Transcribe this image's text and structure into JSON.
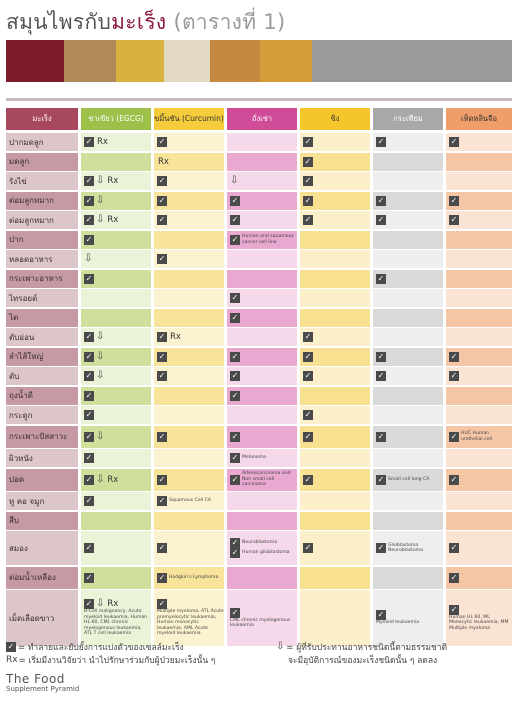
{
  "title": {
    "main": "สมุนไพรกับ",
    "highlight": "มะเร็ง",
    "sub": "(ตารางที่ 1)"
  },
  "banner_colors": [
    "#7e1d2a",
    "#b08a5a",
    "#d8b23e",
    "#e2d9c4",
    "#c58a3f",
    "#d59d3a",
    "#9a9a9a"
  ],
  "headers": [
    "มะเร็ง",
    "ชาเขียว (EGCG)",
    "ขมิ้นชัน (Curcumin)",
    "ถั่งเช่า",
    "ขิง",
    "กระเทียม",
    "เห็ดหลินจือ"
  ],
  "rows": [
    {
      "label": "ปากมดลูก",
      "h": "n",
      "cells": [
        [
          "c",
          "rx"
        ],
        [
          "c"
        ],
        [],
        [
          "c"
        ],
        [
          "c"
        ],
        [
          "c"
        ]
      ]
    },
    {
      "label": "มดลูก",
      "h": "n",
      "cells": [
        [],
        [
          "rx"
        ],
        [],
        [
          "c"
        ],
        [],
        []
      ]
    },
    {
      "label": "รังไข่",
      "h": "n",
      "cells": [
        [
          "c",
          "a",
          "rx"
        ],
        [
          "c"
        ],
        [
          "a"
        ],
        [
          "c"
        ],
        [],
        []
      ]
    },
    {
      "label": "ต่อมลูกหมาก",
      "h": "n",
      "cells": [
        [
          "c",
          "a"
        ],
        [
          "c"
        ],
        [
          "c"
        ],
        [
          "c"
        ],
        [
          "c"
        ],
        [
          "c"
        ]
      ]
    },
    {
      "label": "ต่อมลูกหมาก",
      "h": "n",
      "cells": [
        [
          "c",
          "a",
          "rx"
        ],
        [
          "c"
        ],
        [
          "c"
        ],
        [
          "c"
        ],
        [
          "c"
        ],
        [
          "c"
        ]
      ]
    },
    {
      "label": "ปาก",
      "h": "n",
      "cells": [
        [
          "c"
        ],
        [],
        [
          "c",
          "note:Human oral squamous cancer cell line"
        ],
        [],
        [],
        []
      ]
    },
    {
      "label": "หลอดอาหาร",
      "h": "n",
      "cells": [
        [
          "a"
        ],
        [
          "c"
        ],
        [],
        [],
        [],
        []
      ]
    },
    {
      "label": "กระเพาะอาหาร",
      "h": "n",
      "cells": [
        [
          "c"
        ],
        [],
        [],
        [],
        [
          "c"
        ],
        []
      ]
    },
    {
      "label": "ไทรอยด์",
      "h": "n",
      "cells": [
        [],
        [],
        [
          "c"
        ],
        [],
        [],
        []
      ]
    },
    {
      "label": "ไต",
      "h": "n",
      "cells": [
        [],
        [],
        [
          "c"
        ],
        [],
        [],
        []
      ]
    },
    {
      "label": "ตับอ่อน",
      "h": "n",
      "cells": [
        [
          "c",
          "a"
        ],
        [
          "c",
          "rx"
        ],
        [],
        [
          "c"
        ],
        [],
        []
      ]
    },
    {
      "label": "ลำไส้ใหญ่",
      "h": "n",
      "cells": [
        [
          "c",
          "a"
        ],
        [
          "c"
        ],
        [
          "c"
        ],
        [
          "c"
        ],
        [
          "c"
        ],
        [
          "c"
        ]
      ]
    },
    {
      "label": "ตับ",
      "h": "n",
      "cells": [
        [
          "c",
          "a"
        ],
        [
          "c"
        ],
        [
          "c"
        ],
        [
          "c"
        ],
        [
          "c"
        ],
        [
          "c"
        ]
      ]
    },
    {
      "label": "ถุงน้ำดี",
      "h": "n",
      "cells": [
        [
          "c"
        ],
        [],
        [
          "c"
        ],
        [],
        [],
        []
      ]
    },
    {
      "label": "กระดูก",
      "h": "n",
      "cells": [
        [
          "c"
        ],
        [],
        [],
        [
          "c"
        ],
        [],
        []
      ]
    },
    {
      "label": "กระเพาะปัสสาวะ",
      "h": "t",
      "cells": [
        [
          "c",
          "a"
        ],
        [
          "c"
        ],
        [
          "c"
        ],
        [
          "c"
        ],
        [
          "c"
        ],
        [
          "c",
          "note:HUC Human urothelial cell"
        ]
      ]
    },
    {
      "label": "ผิวหนัง",
      "h": "n",
      "cells": [
        [
          "c"
        ],
        [],
        [
          "c",
          "note:Melanoma"
        ],
        [],
        [],
        []
      ]
    },
    {
      "label": "ปอด",
      "h": "t",
      "cells": [
        [
          "c",
          "a",
          "rx"
        ],
        [
          "c"
        ],
        [
          "c",
          "note:Adenocarcinoma and Non small cell carcinoma"
        ],
        [
          "c"
        ],
        [
          "c",
          "note:Small cell lung CA"
        ],
        [
          "c"
        ]
      ]
    },
    {
      "label": "หู คอ จมูก",
      "h": "n",
      "cells": [
        [
          "c"
        ],
        [
          "c",
          "note:Squamous Cell CA"
        ],
        [],
        [],
        [],
        []
      ]
    },
    {
      "label": "สืบ",
      "h": "n",
      "cells": [
        [],
        [],
        [],
        [],
        [],
        []
      ]
    },
    {
      "label": "สมอง",
      "h": "x",
      "cells": [
        [
          "c"
        ],
        [
          "c"
        ],
        [
          "c",
          "note:Neuroblastoma",
          "c2:Human glioblastoma"
        ],
        [
          "c"
        ],
        [
          "c",
          "note:Glioblastoma Neuroblastoma"
        ],
        [
          "c"
        ]
      ]
    },
    {
      "label": "ต่อมน้ำเหลือง",
      "h": "t",
      "cells": [
        [
          "c"
        ],
        [
          "c",
          "note:Hodgkin's Lymphoma"
        ],
        [],
        [],
        [],
        [
          "c"
        ]
      ]
    },
    {
      "label": "เม็ดเลือดขาว",
      "h": "xx",
      "cells": [
        [
          "c",
          "a",
          "rx",
          "note:B-Cell malignancy, Acute myeloid leukaemia, Human HL-60, CML chronic myelogenous leukaemia, ATL T cell leukaemia"
        ],
        [
          "c",
          "note:Multiple myeloma, ATL Acute promyelocytic leukaemia, Human monocytic leukaemia, AML Acute myeloid leukaemia"
        ],
        [
          "c",
          "note:CML chronic myelogenous leukaemia"
        ],
        [],
        [
          "c",
          "note:Myeloid leukaemia"
        ],
        [
          "c",
          "note:Human HL 60, ML Monocytic leukaemia, MM Multiple myeloma"
        ]
      ]
    }
  ],
  "legend": {
    "check_text": "= ทำลายและยับยั้งการแบ่งตัวของเซลล์มะเร็ง",
    "rx_label": "Rx",
    "rx_text": "= เริ่มมีงานวิจัยว่า นำไปรักษาร่วมกับผู้ป่วยมะเร็งนั้น ๆ",
    "arrow_text_1": "= ผู้ที่รับประทานอาหารชนิดนี้ตามธรรมชาติ",
    "arrow_text_2": "จะมีอุบัติการณ์ของมะเร็งชนิดนั้น ๆ ลดลง"
  },
  "brand": {
    "line1": "The Food",
    "line2": "Supplement Pyramid"
  }
}
